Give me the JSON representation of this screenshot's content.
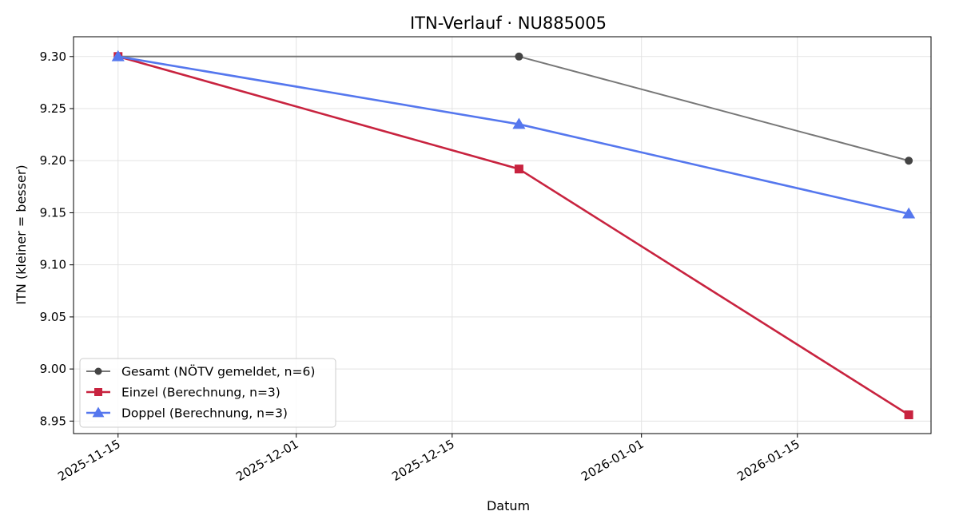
{
  "chart_data": {
    "type": "line",
    "title": "ITN-Verlauf · NU885005",
    "xlabel": "Datum",
    "ylabel": "ITN  (kleiner = besser)",
    "x_ticks": [
      "2025-11-15",
      "2025-12-01",
      "2025-12-15",
      "2026-01-01",
      "2026-01-15"
    ],
    "y_ticks": [
      "8.95",
      "9.00",
      "9.05",
      "9.10",
      "9.15",
      "9.20",
      "9.25",
      "9.30"
    ],
    "xlim": [
      "2025-11-11",
      "2026-01-27"
    ],
    "ylim": [
      8.938,
      9.319
    ],
    "grid": true,
    "legend_position": "lower-left",
    "series": [
      {
        "name": "Gesamt (NÖTV gemeldet, n=6)",
        "color": "#777777",
        "marker_color": "#444444",
        "marker": "circle",
        "x": [
          "2025-11-15",
          "2025-12-21",
          "2026-01-25"
        ],
        "y": [
          9.3,
          9.3,
          9.2
        ]
      },
      {
        "name": "Einzel (Berechnung, n=3)",
        "color": "#c8233f",
        "marker_color": "#c8233f",
        "marker": "square",
        "x": [
          "2025-11-15",
          "2025-12-21",
          "2026-01-25"
        ],
        "y": [
          9.3,
          9.192,
          8.956
        ]
      },
      {
        "name": "Doppel (Berechnung, n=3)",
        "color": "#5577ee",
        "marker_color": "#5577ee",
        "marker": "triangle",
        "x": [
          "2025-11-15",
          "2025-12-21",
          "2026-01-25"
        ],
        "y": [
          9.3,
          9.235,
          9.149
        ]
      }
    ]
  }
}
